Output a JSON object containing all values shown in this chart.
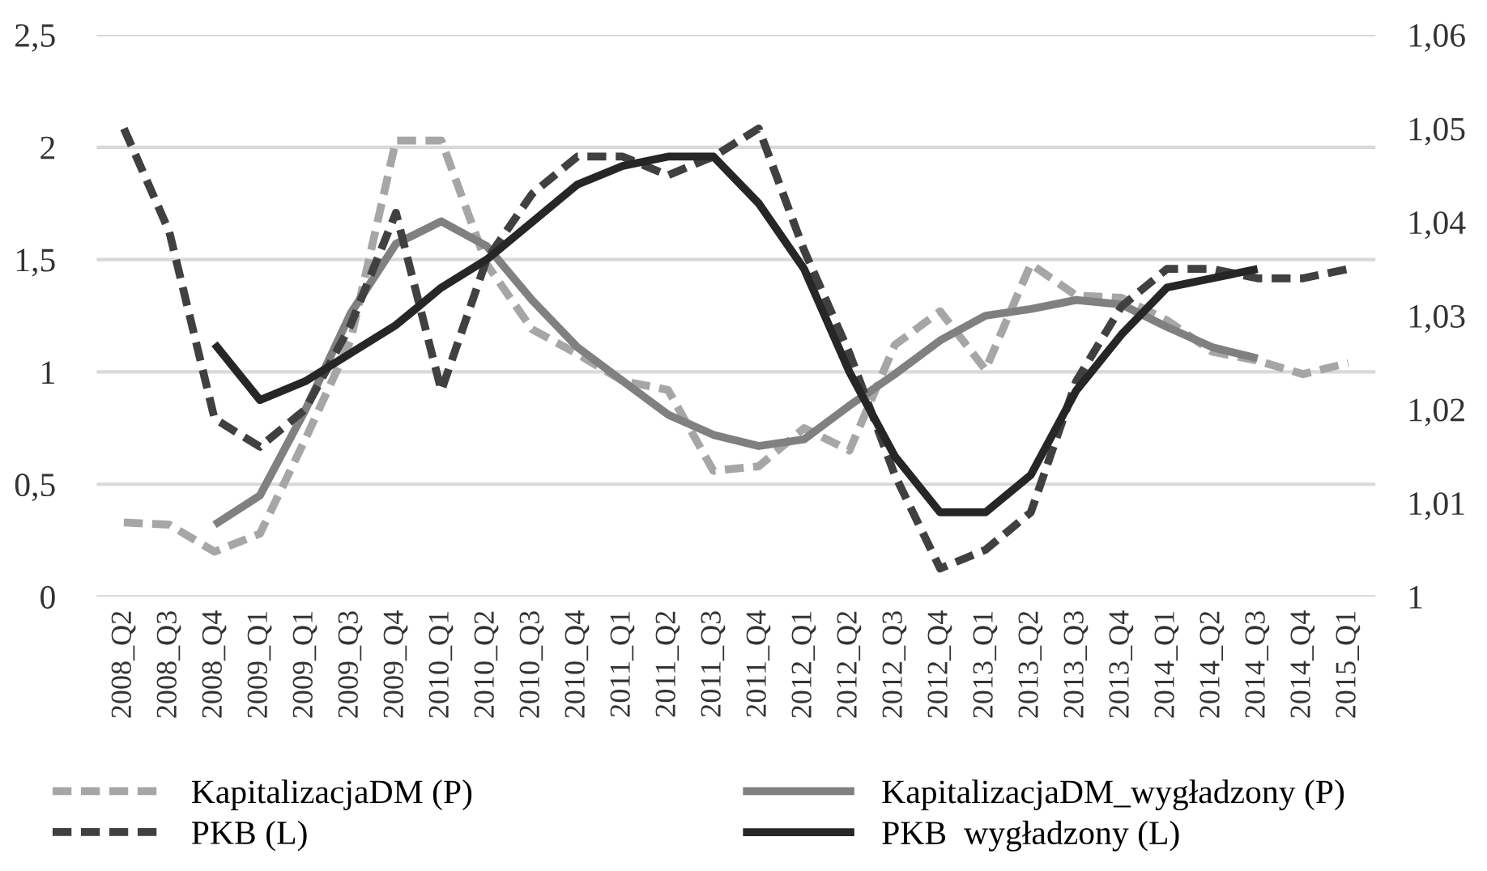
{
  "chart_data": {
    "type": "line",
    "categories": [
      "2008_Q2",
      "2008_Q3",
      "2008_Q4",
      "2009_Q1",
      "2009_Q1",
      "2009_Q3",
      "2009_Q4",
      "2010_Q1",
      "2010_Q2",
      "2010_Q3",
      "2010_Q4",
      "2011_Q1",
      "2011_Q2",
      "2011_Q3",
      "2011_Q4",
      "2012_Q1",
      "2012_Q2",
      "2012_Q3",
      "2012_Q4",
      "2013_Q1",
      "2013_Q2",
      "2013_Q3",
      "2013_Q4",
      "2014_Q1",
      "2014_Q2",
      "2014_Q3",
      "2014_Q4",
      "2015_Q1"
    ],
    "series": [
      {
        "name": "KapitalizacjaDM (P)",
        "color": "#a6a6a6",
        "line_style": "dashed",
        "values": [
          0.33,
          0.32,
          0.2,
          0.28,
          0.7,
          1.14,
          2.03,
          2.03,
          1.48,
          1.19,
          1.08,
          0.96,
          0.92,
          0.56,
          0.58,
          0.75,
          0.65,
          1.12,
          1.27,
          1.01,
          1.48,
          1.34,
          1.33,
          1.23,
          1.09,
          1.05,
          0.99,
          1.04
        ]
      },
      {
        "name": "KapitalizacjaDM_wygładzony (P)",
        "color": "#808080",
        "line_style": "solid",
        "values": [
          null,
          null,
          0.32,
          0.45,
          0.83,
          1.26,
          1.57,
          1.67,
          1.56,
          1.32,
          1.11,
          0.96,
          0.81,
          0.72,
          0.67,
          0.7,
          0.85,
          0.99,
          1.14,
          1.25,
          1.28,
          1.32,
          1.3,
          1.2,
          1.11,
          1.06,
          null,
          null
        ]
      },
      {
        "name": "PKB (L)",
        "color": "#404040",
        "line_style": "dashed",
        "axis": "y2",
        "values": [
          1.05,
          1.039,
          1.019,
          1.016,
          1.02,
          1.029,
          1.041,
          1.022,
          1.036,
          1.043,
          1.047,
          1.047,
          1.045,
          1.047,
          1.05,
          1.037,
          1.026,
          1.013,
          1.003,
          1.005,
          1.009,
          1.023,
          1.031,
          1.035,
          1.035,
          1.034,
          1.034,
          1.035
        ]
      },
      {
        "name": "PKB  wygładzony (L)",
        "color": "#262626",
        "line_style": "solid",
        "axis": "y2",
        "values": [
          null,
          null,
          1.027,
          1.021,
          1.023,
          1.026,
          1.029,
          1.033,
          1.036,
          1.04,
          1.044,
          1.046,
          1.047,
          1.047,
          1.042,
          1.035,
          1.024,
          1.015,
          1.009,
          1.009,
          1.013,
          1.022,
          1.028,
          1.033,
          1.034,
          1.035,
          null,
          null
        ]
      }
    ],
    "ylim": [
      0,
      2.5
    ],
    "yticks": [
      0,
      {
        "value": 0.5,
        "label": "0,5"
      },
      1,
      {
        "value": 1.5,
        "label": "1,5"
      },
      2,
      {
        "value": 2.5,
        "label": "2,5"
      }
    ],
    "y2lim": [
      1,
      1.06
    ],
    "y2ticks": [
      1,
      {
        "value": 1.01,
        "label": "1,01"
      },
      {
        "value": 1.02,
        "label": "1,02"
      },
      {
        "value": 1.03,
        "label": "1,03"
      },
      {
        "value": 1.04,
        "label": "1,04"
      },
      {
        "value": 1.05,
        "label": "1,05"
      },
      {
        "value": 1.06,
        "label": "1,06"
      }
    ],
    "grid": "y",
    "legend": "bottom",
    "marker": "none"
  }
}
